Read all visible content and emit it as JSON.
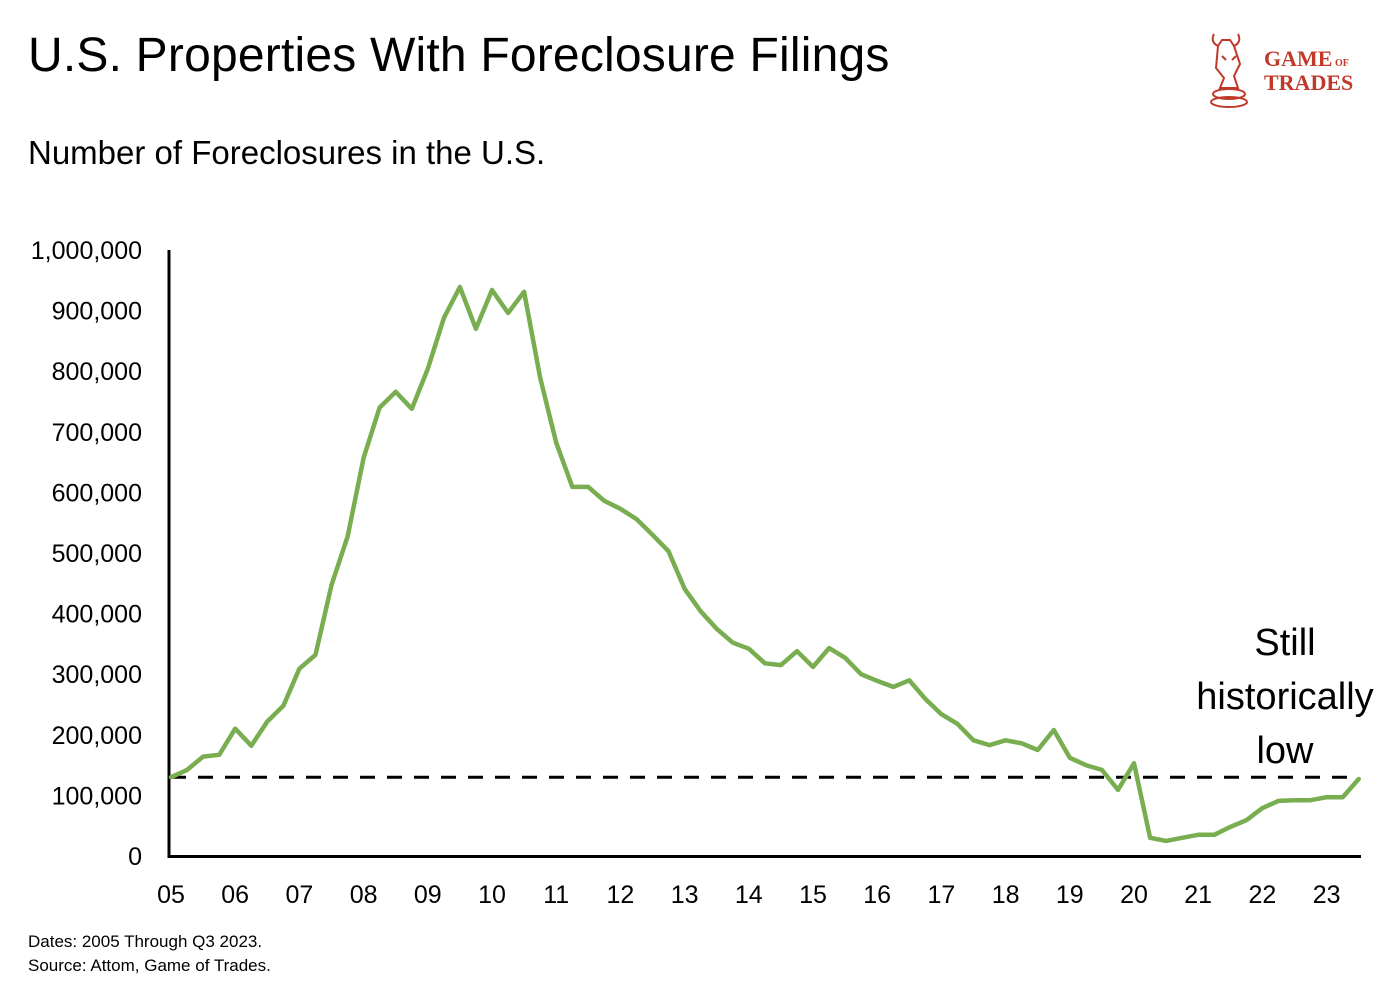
{
  "title": "U.S. Properties With Foreclosure Filings",
  "subtitle": "Number of Foreclosures in the U.S.",
  "footnote": {
    "dates": "Dates: 2005 Through Q3 2023.",
    "source": "Source: Attom, Game of Trades."
  },
  "logo": {
    "line1": "GAME",
    "of": "OF",
    "line2": "TRADES",
    "color": "#c0392b"
  },
  "annotation": [
    "Still",
    "historically",
    "low"
  ],
  "chart_data": {
    "type": "line",
    "frequency": "quarterly",
    "x_start": "2005 Q1",
    "x_end": "2023 Q3",
    "x_tick_labels": [
      "05",
      "06",
      "07",
      "08",
      "09",
      "10",
      "11",
      "12",
      "13",
      "14",
      "15",
      "16",
      "17",
      "18",
      "19",
      "20",
      "21",
      "22",
      "23"
    ],
    "y_tick_labels": [
      "0",
      "100,000",
      "200,000",
      "300,000",
      "400,000",
      "500,000",
      "600,000",
      "700,000",
      "800,000",
      "900,000",
      "1,000,000"
    ],
    "ylim": [
      0,
      1000000
    ],
    "grid": false,
    "line_color": "#78ad50",
    "reference_line": {
      "value": 130000,
      "style": "dashed",
      "color": "#000000"
    },
    "values": [
      130000,
      142000,
      164000,
      167000,
      210000,
      182000,
      222000,
      248000,
      309000,
      332000,
      447000,
      527000,
      657000,
      740000,
      766000,
      738000,
      804000,
      888000,
      939000,
      870000,
      934000,
      896000,
      931000,
      789000,
      682000,
      609000,
      609000,
      586000,
      573000,
      556000,
      530000,
      503000,
      441000,
      404000,
      375000,
      352000,
      342000,
      318000,
      315000,
      338000,
      312000,
      343000,
      327000,
      300000,
      289000,
      279000,
      290000,
      259000,
      234000,
      218000,
      191000,
      183000,
      191000,
      186000,
      175000,
      208000,
      162000,
      150000,
      142000,
      109000,
      153000,
      30000,
      25000,
      30000,
      35000,
      35000,
      48000,
      59000,
      79000,
      91000,
      92000,
      92000,
      97000,
      97000,
      127000
    ]
  }
}
